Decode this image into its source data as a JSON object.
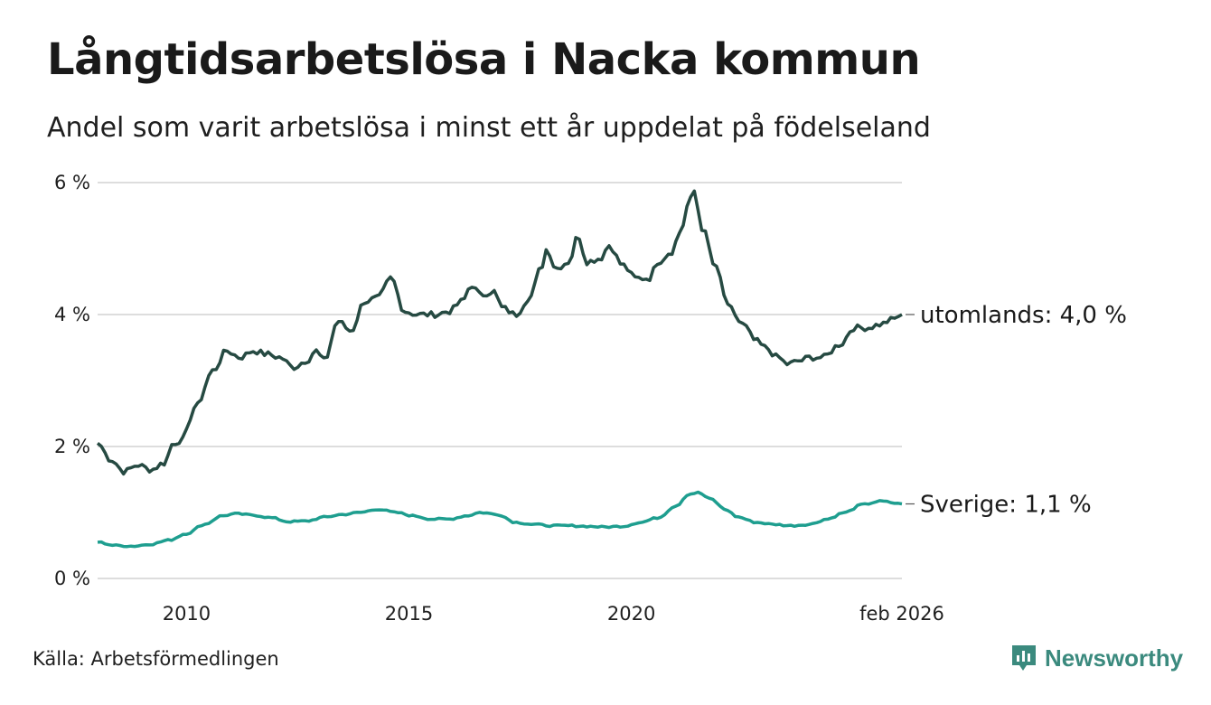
{
  "title": "Långtidsarbetslösa i Nacka kommun",
  "subtitle": "Andel som varit arbetslösa i minst ett år uppdelat på födelseland",
  "source": "Källa: Arbetsförmedlingen",
  "brand": "Newsworthy",
  "colors": {
    "utomlands": "#264a42",
    "sverige": "#1e9e8f",
    "grid": "#dddddd",
    "brand": "#3b8a7e"
  },
  "chart_data": {
    "type": "line",
    "x_start": 2008.0,
    "x_end": 2026.083,
    "ylim": [
      0,
      6
    ],
    "yticks": [
      0,
      2,
      4,
      6
    ],
    "ytick_labels": [
      "0 %",
      "2 %",
      "4 %",
      "6 %"
    ],
    "xticks": [
      2010,
      2015,
      2020,
      2026.083
    ],
    "xtick_labels": [
      "2010",
      "2015",
      "2020",
      "feb 2026"
    ],
    "series": [
      {
        "name": "utomlands",
        "label": "utomlands: 4,0 %",
        "color": "#264a42",
        "anchors": [
          [
            2008.0,
            2.05
          ],
          [
            2008.3,
            1.8
          ],
          [
            2008.6,
            1.62
          ],
          [
            2008.9,
            1.72
          ],
          [
            2009.2,
            1.65
          ],
          [
            2009.5,
            1.75
          ],
          [
            2009.7,
            2.05
          ],
          [
            2009.9,
            2.1
          ],
          [
            2010.2,
            2.6
          ],
          [
            2010.6,
            3.15
          ],
          [
            2010.9,
            3.45
          ],
          [
            2011.2,
            3.35
          ],
          [
            2011.5,
            3.45
          ],
          [
            2011.8,
            3.4
          ],
          [
            2012.1,
            3.35
          ],
          [
            2012.4,
            3.2
          ],
          [
            2012.7,
            3.3
          ],
          [
            2012.9,
            3.45
          ],
          [
            2013.1,
            3.3
          ],
          [
            2013.4,
            3.9
          ],
          [
            2013.7,
            3.75
          ],
          [
            2014.0,
            4.2
          ],
          [
            2014.3,
            4.25
          ],
          [
            2014.6,
            4.55
          ],
          [
            2014.9,
            4.05
          ],
          [
            2015.2,
            4.0
          ],
          [
            2015.6,
            4.0
          ],
          [
            2015.9,
            4.05
          ],
          [
            2016.2,
            4.2
          ],
          [
            2016.4,
            4.45
          ],
          [
            2016.6,
            4.3
          ],
          [
            2016.9,
            4.35
          ],
          [
            2017.1,
            4.1
          ],
          [
            2017.4,
            4.0
          ],
          [
            2017.7,
            4.25
          ],
          [
            2018.0,
            4.75
          ],
          [
            2018.1,
            5.0
          ],
          [
            2018.3,
            4.7
          ],
          [
            2018.6,
            4.8
          ],
          [
            2018.8,
            5.2
          ],
          [
            2019.0,
            4.8
          ],
          [
            2019.3,
            4.85
          ],
          [
            2019.5,
            5.05
          ],
          [
            2019.8,
            4.75
          ],
          [
            2020.1,
            4.55
          ],
          [
            2020.4,
            4.55
          ],
          [
            2020.6,
            4.8
          ],
          [
            2020.9,
            4.95
          ],
          [
            2021.1,
            5.25
          ],
          [
            2021.3,
            5.7
          ],
          [
            2021.4,
            5.88
          ],
          [
            2021.6,
            5.3
          ],
          [
            2021.9,
            4.7
          ],
          [
            2022.2,
            4.1
          ],
          [
            2022.5,
            3.85
          ],
          [
            2022.8,
            3.6
          ],
          [
            2023.0,
            3.5
          ],
          [
            2023.3,
            3.35
          ],
          [
            2023.5,
            3.25
          ],
          [
            2023.8,
            3.3
          ],
          [
            2024.0,
            3.35
          ],
          [
            2024.3,
            3.35
          ],
          [
            2024.7,
            3.55
          ],
          [
            2025.0,
            3.8
          ],
          [
            2025.3,
            3.8
          ],
          [
            2025.6,
            3.85
          ],
          [
            2025.85,
            3.92
          ],
          [
            2026.083,
            4.0
          ]
        ]
      },
      {
        "name": "sverige",
        "label": "Sverige: 1,1 %",
        "color": "#1e9e8f",
        "anchors": [
          [
            2008.0,
            0.55
          ],
          [
            2008.4,
            0.5
          ],
          [
            2008.8,
            0.49
          ],
          [
            2009.2,
            0.52
          ],
          [
            2009.6,
            0.58
          ],
          [
            2010.0,
            0.68
          ],
          [
            2010.4,
            0.82
          ],
          [
            2010.8,
            0.95
          ],
          [
            2011.1,
            0.98
          ],
          [
            2011.5,
            0.96
          ],
          [
            2011.9,
            0.92
          ],
          [
            2012.3,
            0.86
          ],
          [
            2012.7,
            0.87
          ],
          [
            2013.1,
            0.93
          ],
          [
            2013.5,
            0.97
          ],
          [
            2013.9,
            1.0
          ],
          [
            2014.3,
            1.05
          ],
          [
            2014.7,
            1.0
          ],
          [
            2015.1,
            0.95
          ],
          [
            2015.5,
            0.9
          ],
          [
            2015.9,
            0.9
          ],
          [
            2016.3,
            0.95
          ],
          [
            2016.6,
            1.0
          ],
          [
            2017.0,
            0.97
          ],
          [
            2017.4,
            0.85
          ],
          [
            2017.8,
            0.82
          ],
          [
            2018.2,
            0.8
          ],
          [
            2018.6,
            0.8
          ],
          [
            2019.0,
            0.79
          ],
          [
            2019.4,
            0.78
          ],
          [
            2019.8,
            0.79
          ],
          [
            2020.2,
            0.85
          ],
          [
            2020.6,
            0.92
          ],
          [
            2021.0,
            1.1
          ],
          [
            2021.3,
            1.28
          ],
          [
            2021.5,
            1.3
          ],
          [
            2021.8,
            1.2
          ],
          [
            2022.1,
            1.05
          ],
          [
            2022.4,
            0.93
          ],
          [
            2022.8,
            0.85
          ],
          [
            2023.2,
            0.82
          ],
          [
            2023.6,
            0.8
          ],
          [
            2024.0,
            0.82
          ],
          [
            2024.4,
            0.9
          ],
          [
            2024.8,
            1.0
          ],
          [
            2025.2,
            1.12
          ],
          [
            2025.6,
            1.17
          ],
          [
            2026.083,
            1.13
          ]
        ]
      }
    ]
  }
}
